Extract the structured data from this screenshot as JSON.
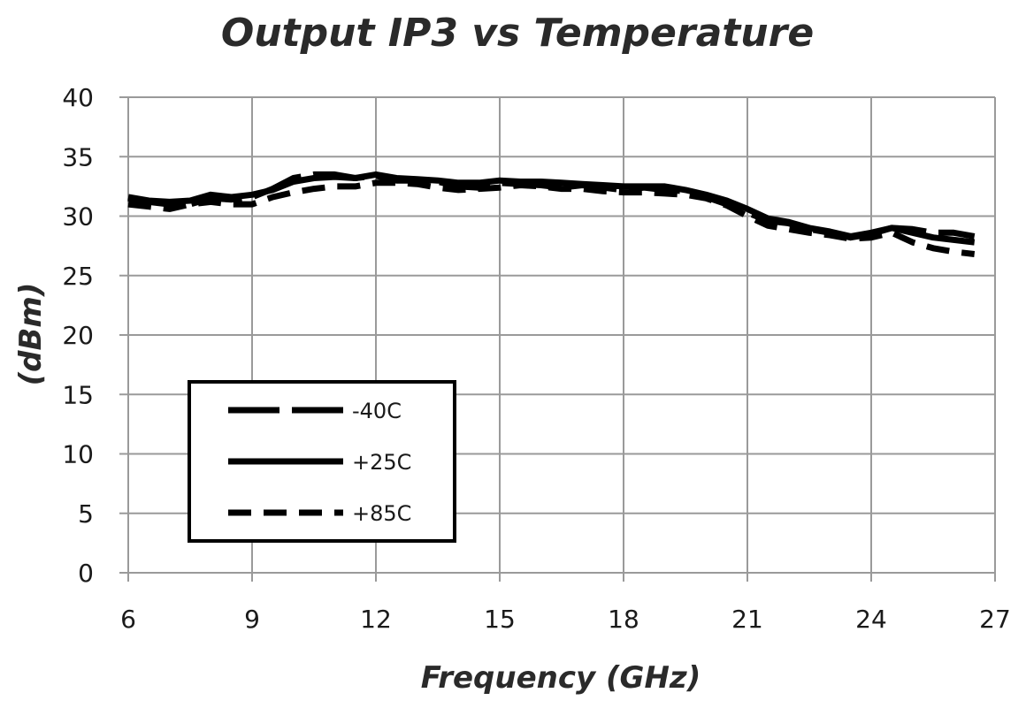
{
  "chart_data": {
    "type": "line",
    "title": "Output IP3 vs Temperature",
    "xlabel": "Frequency (GHz)",
    "ylabel": "(dBm)",
    "xlim": [
      6,
      27
    ],
    "ylim": [
      0,
      40
    ],
    "x_ticks": [
      6,
      9,
      12,
      15,
      18,
      21,
      24,
      27
    ],
    "y_ticks": [
      0,
      5,
      10,
      15,
      20,
      25,
      30,
      35,
      40
    ],
    "grid": true,
    "legend_position": "bottom-left",
    "series": [
      {
        "name": "-40C",
        "style": "long-dash",
        "x": [
          6,
          6.5,
          7,
          7.5,
          8,
          8.5,
          9,
          9.5,
          10,
          10.5,
          11,
          11.5,
          12,
          12.5,
          13,
          13.5,
          14,
          14.5,
          15,
          15.5,
          16,
          16.5,
          17,
          17.5,
          18,
          18.5,
          19,
          19.5,
          20,
          20.5,
          21,
          21.5,
          22,
          22.5,
          23,
          23.5,
          24,
          24.5,
          25,
          25.5,
          26,
          26.5
        ],
        "y": [
          31.5,
          31.2,
          31.0,
          31.0,
          31.5,
          31.4,
          31.6,
          32.3,
          33.2,
          33.5,
          33.5,
          33.2,
          33.4,
          33.0,
          33.0,
          32.9,
          32.5,
          32.4,
          32.8,
          32.7,
          32.6,
          32.4,
          32.6,
          32.4,
          32.2,
          32.4,
          32.2,
          32.1,
          31.6,
          31.0,
          30.3,
          29.6,
          29.4,
          28.9,
          28.6,
          28.2,
          28.5,
          29.0,
          28.9,
          28.6,
          28.6,
          28.3
        ]
      },
      {
        "name": "+25C",
        "style": "solid",
        "x": [
          6,
          6.5,
          7,
          7.5,
          8,
          8.5,
          9,
          9.5,
          10,
          10.5,
          11,
          11.5,
          12,
          12.5,
          13,
          13.5,
          14,
          14.5,
          15,
          15.5,
          16,
          16.5,
          17,
          17.5,
          18,
          18.5,
          19,
          19.5,
          20,
          20.5,
          21,
          21.5,
          22,
          22.5,
          23,
          23.5,
          24,
          24.5,
          25,
          25.5,
          26,
          26.5
        ],
        "y": [
          31.6,
          31.3,
          31.2,
          31.3,
          31.8,
          31.6,
          31.8,
          32.2,
          32.9,
          33.2,
          33.3,
          33.2,
          33.5,
          33.2,
          33.1,
          33.0,
          32.8,
          32.8,
          33.0,
          32.9,
          32.9,
          32.8,
          32.7,
          32.6,
          32.5,
          32.5,
          32.5,
          32.2,
          31.8,
          31.3,
          30.6,
          29.8,
          29.5,
          29.0,
          28.7,
          28.3,
          28.6,
          29.0,
          28.6,
          28.2,
          28.0,
          27.8
        ]
      },
      {
        "name": "+85C",
        "style": "short-dash",
        "x": [
          6,
          6.5,
          7,
          7.5,
          8,
          8.5,
          9,
          9.5,
          10,
          10.5,
          11,
          11.5,
          12,
          12.5,
          13,
          13.5,
          14,
          14.5,
          15,
          15.5,
          16,
          16.5,
          17,
          17.5,
          18,
          18.5,
          19,
          19.5,
          20,
          20.5,
          21,
          21.5,
          22,
          22.5,
          23,
          23.5,
          24,
          24.5,
          25,
          25.5,
          26,
          26.5
        ],
        "y": [
          31.0,
          30.8,
          30.6,
          31.0,
          31.2,
          31.0,
          31.0,
          31.6,
          32.0,
          32.3,
          32.5,
          32.5,
          32.8,
          32.8,
          32.7,
          32.4,
          32.2,
          32.3,
          32.4,
          32.6,
          32.5,
          32.3,
          32.3,
          32.1,
          32.0,
          32.0,
          31.9,
          31.8,
          31.5,
          30.9,
          30.0,
          29.2,
          28.9,
          28.6,
          28.4,
          28.1,
          28.2,
          28.6,
          27.8,
          27.3,
          27.0,
          26.8
        ]
      }
    ]
  }
}
